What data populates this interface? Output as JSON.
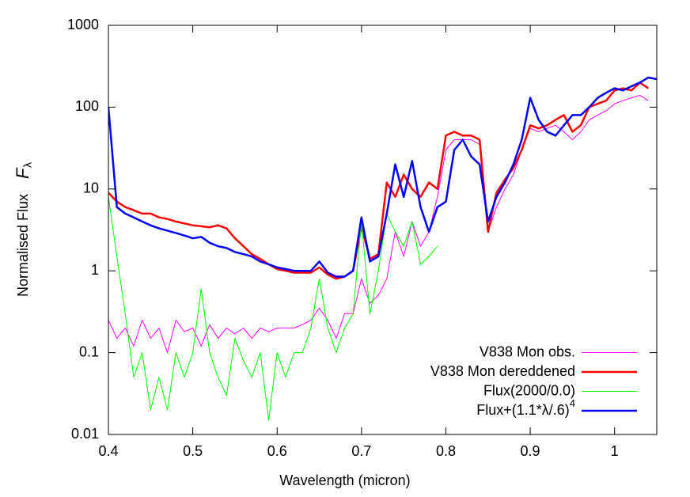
{
  "chart_data": {
    "type": "line",
    "xlabel": "Wavelength (micron)",
    "ylabel": "Normalised Flux",
    "ylabel_var": "F",
    "ylabel_sub": "λ",
    "log_y": true,
    "xlim": [
      0.4,
      1.05
    ],
    "xticks": [
      0.4,
      0.5,
      0.6,
      0.7,
      0.8,
      0.9,
      1
    ],
    "ylim": [
      0.01,
      1000
    ],
    "yticks": [
      0.01,
      0.1,
      1,
      10,
      100,
      1000
    ],
    "legend": "lower right",
    "x": [
      0.4,
      0.41,
      0.42,
      0.43,
      0.44,
      0.45,
      0.46,
      0.47,
      0.48,
      0.49,
      0.5,
      0.51,
      0.52,
      0.53,
      0.54,
      0.55,
      0.56,
      0.57,
      0.58,
      0.59,
      0.6,
      0.61,
      0.62,
      0.63,
      0.64,
      0.65,
      0.66,
      0.67,
      0.68,
      0.69,
      0.7,
      0.71,
      0.72,
      0.73,
      0.74,
      0.75,
      0.76,
      0.77,
      0.78,
      0.79,
      0.8,
      0.81,
      0.82,
      0.83,
      0.84,
      0.85,
      0.86,
      0.87,
      0.88,
      0.89,
      0.9,
      0.91,
      0.92,
      0.93,
      0.94,
      0.95,
      0.96,
      0.97,
      0.98,
      0.99,
      1.0,
      1.01,
      1.02,
      1.03,
      1.04,
      1.05
    ],
    "series": [
      {
        "name": "V838 Mon obs.",
        "color": "#ff00ff",
        "width": 1,
        "values": [
          0.25,
          0.15,
          0.2,
          0.12,
          0.25,
          0.15,
          0.2,
          0.1,
          0.25,
          0.18,
          0.2,
          0.12,
          0.22,
          0.15,
          0.2,
          0.17,
          0.2,
          0.15,
          0.2,
          0.18,
          0.2,
          0.2,
          0.2,
          0.22,
          0.25,
          0.35,
          0.25,
          0.15,
          0.3,
          0.3,
          0.8,
          0.4,
          0.5,
          0.8,
          3,
          1.5,
          4,
          2,
          3,
          8,
          30,
          40,
          40,
          40,
          35,
          3,
          6,
          10,
          15,
          30,
          55,
          50,
          55,
          60,
          50,
          40,
          50,
          70,
          80,
          90,
          110,
          120,
          130,
          140,
          120,
          null
        ]
      },
      {
        "name": "V838 Mon dereddened",
        "color": "#ff0000",
        "width": 2.5,
        "values": [
          9,
          7,
          6,
          5.5,
          5,
          5,
          4.5,
          4.3,
          4,
          3.8,
          3.6,
          3.5,
          3.4,
          3.6,
          3.3,
          2.5,
          2,
          1.6,
          1.4,
          1.2,
          1.05,
          1,
          0.95,
          0.95,
          0.95,
          1.1,
          0.9,
          0.8,
          0.85,
          1,
          3.5,
          1.4,
          1.6,
          12,
          8,
          15,
          10,
          8,
          12,
          10,
          45,
          50,
          45,
          45,
          40,
          3,
          9,
          13,
          18,
          30,
          60,
          55,
          60,
          70,
          80,
          50,
          60,
          100,
          110,
          120,
          160,
          170,
          160,
          200,
          170,
          null
        ]
      },
      {
        "name": "Flux(2000/0.0)",
        "color": "#00ff00",
        "width": 1,
        "values": [
          8,
          1.5,
          0.3,
          0.05,
          0.1,
          0.02,
          0.05,
          0.02,
          0.1,
          0.05,
          0.1,
          0.6,
          0.1,
          0.05,
          0.03,
          0.15,
          0.08,
          0.05,
          0.1,
          0.015,
          0.1,
          0.05,
          0.1,
          0.1,
          0.2,
          0.8,
          0.2,
          0.1,
          0.2,
          0.3,
          4,
          0.3,
          1,
          5,
          3,
          2,
          4,
          1.2,
          1.5,
          2,
          null,
          null,
          null,
          null,
          null,
          null,
          null,
          null,
          null,
          null,
          null,
          null,
          null,
          null,
          null,
          null,
          null,
          null,
          null,
          null,
          null,
          null,
          null,
          null,
          null,
          null
        ]
      },
      {
        "name": "Flux+(1.1*λ/.6)",
        "name_sup": "4",
        "color": "#0000ff",
        "width": 2.5,
        "values": [
          100,
          6,
          5,
          4.5,
          4,
          3.6,
          3.3,
          3.1,
          2.9,
          2.7,
          2.5,
          2.6,
          2.2,
          2,
          1.9,
          1.7,
          1.6,
          1.5,
          1.3,
          1.2,
          1.1,
          1.05,
          1,
          1,
          1,
          1.3,
          0.95,
          0.85,
          0.85,
          1,
          4.5,
          1.3,
          1.5,
          5,
          20,
          8,
          22,
          6,
          3,
          6,
          7,
          30,
          40,
          25,
          20,
          4,
          8,
          12,
          20,
          40,
          130,
          70,
          50,
          45,
          60,
          80,
          80,
          100,
          130,
          150,
          170,
          160,
          180,
          200,
          230,
          220
        ]
      }
    ]
  }
}
